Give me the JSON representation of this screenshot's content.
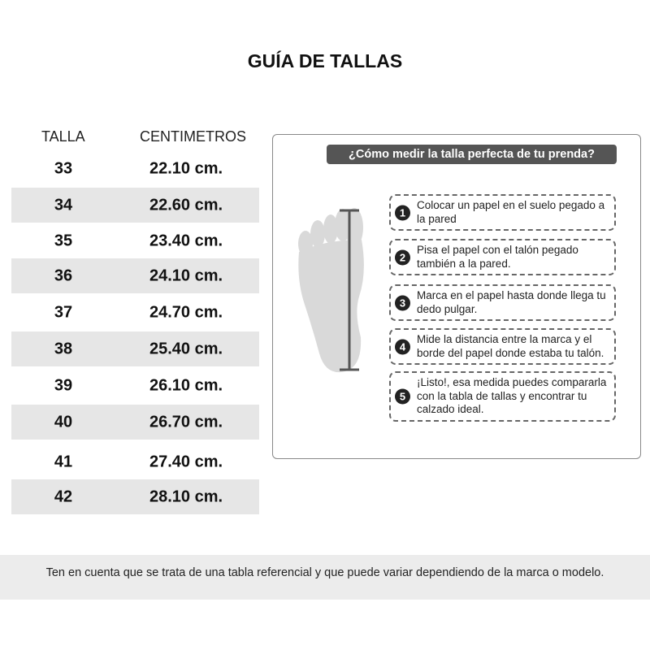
{
  "title": "GUÍA DE TALLAS",
  "table": {
    "headers": [
      "TALLA",
      "CENTIMETROS"
    ],
    "rows": [
      [
        "33",
        "22.10 cm."
      ],
      [
        "34",
        "22.60 cm."
      ],
      [
        "35",
        "23.40 cm."
      ],
      [
        "36",
        "24.10 cm."
      ],
      [
        "37",
        "24.70 cm."
      ],
      [
        "38",
        "25.40 cm."
      ],
      [
        "39",
        "26.10 cm."
      ],
      [
        "40",
        "26.70 cm."
      ],
      [
        "41",
        "27.40 cm."
      ],
      [
        "42",
        "28.10 cm."
      ]
    ]
  },
  "guide": {
    "title": "¿Cómo medir la talla perfecta de tu prenda?",
    "steps": [
      {
        "n": "1",
        "text": "Colocar un papel en el suelo pegado a la pared"
      },
      {
        "n": "2",
        "text": "Pisa el papel con el talón pegado también a la pared."
      },
      {
        "n": "3",
        "text": "Marca en el papel hasta donde llega tu dedo pulgar."
      },
      {
        "n": "4",
        "text": "Mide la distancia entre la marca y el borde del papel donde estaba tu talón."
      },
      {
        "n": "5",
        "text": "¡Listo!, esa medida puedes compararla con la tabla de tallas y encontrar tu calzado ideal."
      }
    ]
  },
  "footer": "Ten en cuenta que se trata de una tabla referencial y que puede variar dependiendo de la marca o modelo."
}
